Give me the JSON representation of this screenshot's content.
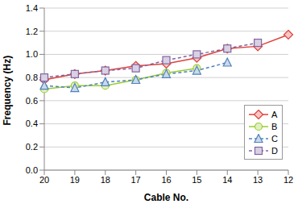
{
  "chart_data": {
    "type": "line",
    "x_label": "Cable No.",
    "y_label": "Frequency (Hz)",
    "categories": [
      "20",
      "19",
      "18",
      "17",
      "16",
      "15",
      "14",
      "13",
      "12"
    ],
    "series": [
      {
        "name": "A",
        "color": "#e0403a",
        "marker": "diamond",
        "line_style": "solid",
        "values": [
          0.78,
          0.83,
          0.86,
          0.9,
          0.92,
          0.97,
          1.05,
          1.07,
          1.17
        ]
      },
      {
        "name": "B",
        "color": "#9acd32",
        "marker": "circle",
        "line_style": "solid",
        "values": [
          0.7,
          0.73,
          0.73,
          0.78,
          0.84,
          0.88,
          null,
          null,
          null
        ]
      },
      {
        "name": "C",
        "color": "#4f81bd",
        "marker": "triangle",
        "line_style": "dashed",
        "values": [
          0.73,
          0.71,
          0.76,
          0.78,
          0.83,
          0.86,
          0.93,
          null,
          null
        ]
      },
      {
        "name": "D",
        "color": "#8064a2",
        "marker": "square",
        "line_style": "dashed",
        "values": [
          0.8,
          0.83,
          0.86,
          0.88,
          0.95,
          1.0,
          1.05,
          1.1,
          null
        ]
      }
    ],
    "ylim": [
      0,
      1.4
    ],
    "yticks": [
      {
        "value": 0,
        "label": "0.0"
      },
      0.2,
      0.4,
      0.6,
      0.8,
      {
        "value": 1,
        "label": "1.0"
      },
      1.2,
      1.4
    ],
    "grid": true,
    "legend": "lower right"
  }
}
